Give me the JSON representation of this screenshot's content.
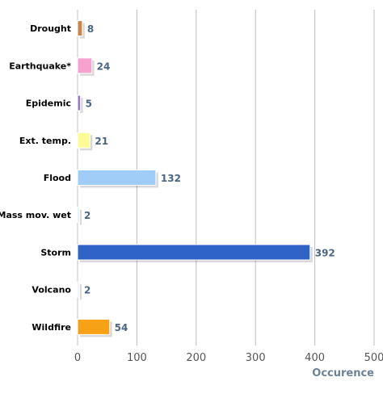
{
  "chart_data": {
    "type": "bar",
    "orientation": "horizontal",
    "categories": [
      "Drought",
      "Earthquake*",
      "Epidemic",
      "Ext. temp.",
      "Flood",
      "Mass mov. wet",
      "Storm",
      "Volcano",
      "Wildfire"
    ],
    "values": [
      8,
      24,
      5,
      21,
      132,
      2,
      392,
      2,
      54
    ],
    "colors": [
      "#c8864a",
      "#f7a1cf",
      "#9a78c2",
      "#fdfb96",
      "#9fcdf7",
      "#cce8f4",
      "#2f63c6",
      "#d9eef7",
      "#f7a117"
    ],
    "xlim": [
      0,
      500
    ],
    "xticks": [
      0,
      100,
      200,
      300,
      400,
      500
    ],
    "xlabel": "Occurence",
    "grid": true,
    "legend": false
  }
}
